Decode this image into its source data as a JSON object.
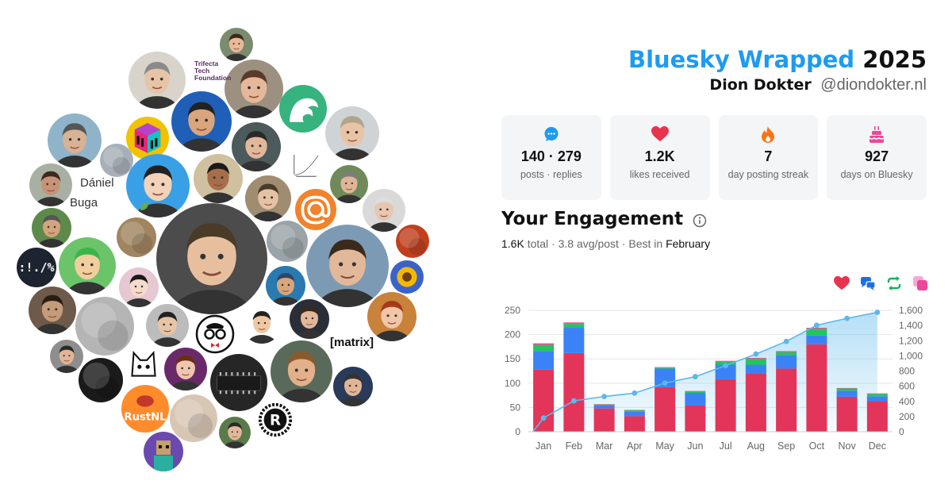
{
  "header": {
    "brand": "Bluesky Wrapped",
    "year": "2025",
    "display_name": "Dion Dokter",
    "handle": "@diondokter.nl"
  },
  "stats": [
    {
      "icon": "speech-bubble-icon",
      "value": "140 · 279",
      "label": "posts · replies",
      "color": "#1d9bf0"
    },
    {
      "icon": "heart-icon",
      "value": "1.2K",
      "label": "likes received",
      "color": "#e8344e"
    },
    {
      "icon": "flame-icon",
      "value": "7",
      "label": "day posting streak",
      "color": "#f97316"
    },
    {
      "icon": "cake-icon",
      "value": "927",
      "label": "days on Bluesky",
      "color": "#ec4899"
    }
  ],
  "engagement": {
    "title": "Your Engagement",
    "total_value": "1.6K",
    "total_label": "total",
    "avg_text": "3.8 avg/post",
    "best_label": "Best in",
    "best_month": "February",
    "sep": "·",
    "legend": [
      {
        "icon": "heart-icon",
        "color": "#e8344e"
      },
      {
        "icon": "reply-icon",
        "color": "#1d6fe0"
      },
      {
        "icon": "repost-icon",
        "color": "#16b35a"
      },
      {
        "icon": "quote-icon",
        "color": "#ec4899"
      }
    ]
  },
  "bubble_labels": {
    "name1": "Dániel",
    "name2": "Buga",
    "trifecta1": "Trifecta",
    "trifecta2": "Tech",
    "trifecta3": "Foundation",
    "matrix": "[matrix]",
    "punct": ":!./%",
    "rustnl": "RustNL",
    "at": "@"
  },
  "chart_data": {
    "type": "bar",
    "categories": [
      "Jan",
      "Feb",
      "Mar",
      "Apr",
      "May",
      "Jun",
      "Jul",
      "Aug",
      "Sep",
      "Oct",
      "Nov",
      "Dec"
    ],
    "series": [
      {
        "values": [
          128,
          162,
          48,
          32,
          92,
          54,
          108,
          120,
          130,
          180,
          72,
          63
        ],
        "color": "#e3355a"
      },
      {
        "values": [
          38,
          52,
          6,
          10,
          38,
          26,
          30,
          18,
          28,
          18,
          12,
          10
        ],
        "color": "#3b82f6"
      },
      {
        "values": [
          13,
          8,
          2,
          2,
          2,
          3,
          6,
          12,
          6,
          14,
          5,
          5
        ],
        "color": "#22c55e"
      },
      {
        "values": [
          3,
          3,
          1,
          1,
          1,
          1,
          2,
          2,
          2,
          2,
          1,
          1
        ],
        "color": "#ec4899"
      }
    ],
    "cumulative": {
      "values": [
        182,
        407,
        464,
        509,
        642,
        726,
        872,
        1024,
        1190,
        1404,
        1494,
        1573
      ],
      "color": "#5bb8ec"
    },
    "ylim": [
      0,
      250
    ],
    "yticks": [
      0,
      50,
      100,
      150,
      200,
      250
    ],
    "y2lim": [
      0,
      1600
    ],
    "y2ticks": [
      "0",
      "200",
      "400",
      "600",
      "800",
      "1,000",
      "1,200",
      "1,400",
      "1,600"
    ],
    "grid": true
  }
}
